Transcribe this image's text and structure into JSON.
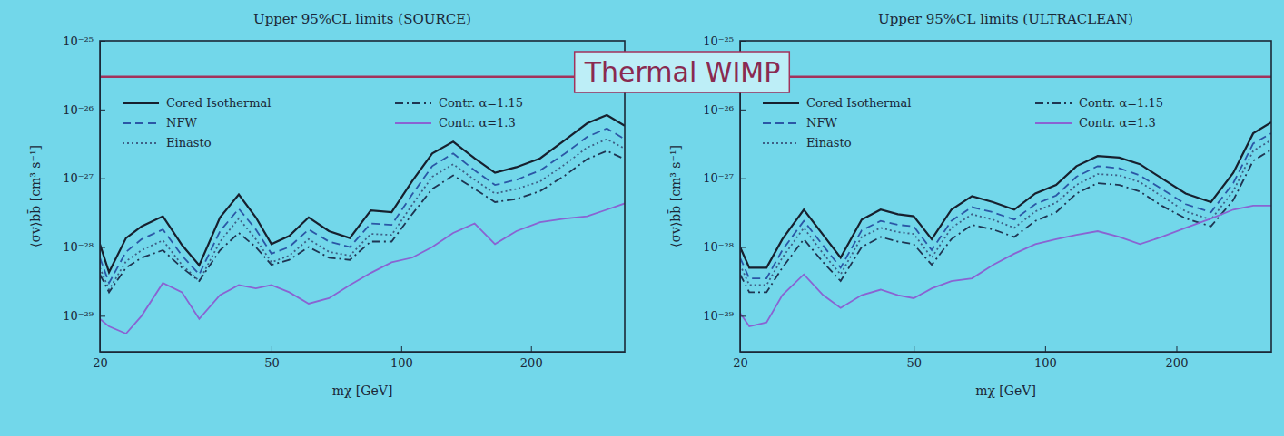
{
  "chart_data": [
    {
      "type": "line",
      "title": "Upper 95%CL limits (SOURCE)",
      "x_label": "mχ [GeV]",
      "y_label": "⟨σv⟩bb̄ [cm³ s⁻¹]",
      "log": true,
      "grid": false,
      "legend": "top",
      "xlim": [
        20,
        330
      ],
      "xticks": [
        20,
        50,
        100,
        200
      ],
      "ylim": [
        3e-30,
        1e-25
      ],
      "yticks": [
        {
          "value": 1e-25,
          "label": "10⁻²⁵"
        },
        {
          "value": 1e-26,
          "label": "10⁻²⁶"
        },
        {
          "value": 1e-27,
          "label": "10⁻²⁷"
        },
        {
          "value": 1e-28,
          "label": "10⁻²⁸"
        },
        {
          "value": 1e-29,
          "label": "10⁻²⁹"
        }
      ],
      "x": [
        20,
        21,
        23,
        25,
        28,
        31,
        34,
        38,
        42,
        46,
        50,
        55,
        61,
        68,
        76,
        85,
        95,
        106,
        118,
        132,
        148,
        165,
        185,
        210,
        240,
        270,
        300,
        330
      ],
      "series": [
        {
          "name": "Cored Isothermal",
          "color": "#17202e",
          "line_style": "solid",
          "values": [
            1.1e-28,
            4.3e-29,
            1.35e-28,
            2e-28,
            2.8e-28,
            1.07e-28,
            5.4e-29,
            2.7e-28,
            5.8e-28,
            2.7e-28,
            1.1e-28,
            1.45e-28,
            2.7e-28,
            1.7e-28,
            1.35e-28,
            3.4e-28,
            3.2e-28,
            9.1e-28,
            2.3e-27,
            3.4e-27,
            1.95e-27,
            1.2e-27,
            1.45e-27,
            1.95e-27,
            3.6e-27,
            6.3e-27,
            8.3e-27,
            5.8e-27
          ]
        },
        {
          "name": "NFW",
          "color": "#2b57a6",
          "line_style": "dashed",
          "values": [
            7e-29,
            3e-29,
            8.5e-29,
            1.3e-28,
            1.8e-28,
            7.5e-29,
            4e-29,
            1.7e-28,
            3.6e-28,
            1.8e-28,
            8e-29,
            1e-28,
            1.8e-28,
            1.2e-28,
            1e-28,
            2.2e-28,
            2.1e-28,
            5.8e-28,
            1.5e-27,
            2.3e-27,
            1.3e-27,
            8e-28,
            9.5e-28,
            1.3e-27,
            2.3e-27,
            4e-27,
            5.3e-27,
            3.7e-27
          ]
        },
        {
          "name": "Einasto",
          "color": "#3d5f86",
          "line_style": "dotted",
          "values": [
            5e-29,
            2.4e-29,
            6.2e-29,
            9e-29,
            1.25e-28,
            5.5e-29,
            3.2e-29,
            1.2e-28,
            2.6e-28,
            1.3e-28,
            6e-29,
            7.5e-29,
            1.3e-28,
            8.5e-29,
            7.5e-29,
            1.55e-28,
            1.5e-28,
            4.1e-28,
            1.05e-27,
            1.6e-27,
            9.5e-28,
            6e-28,
            7e-28,
            9e-28,
            1.6e-27,
            2.8e-27,
            3.7e-27,
            2.7e-27
          ]
        },
        {
          "name": "Contr. α=1.15",
          "color": "#1f3552",
          "line_style": "dashdot",
          "values": [
            4e-29,
            2.2e-29,
            5e-29,
            7e-29,
            9e-29,
            5e-29,
            3.2e-29,
            9e-29,
            1.6e-28,
            1e-28,
            5.5e-29,
            6.5e-29,
            1e-28,
            7e-29,
            6.5e-29,
            1.2e-28,
            1.2e-28,
            3e-28,
            7e-28,
            1.1e-27,
            7e-28,
            4.5e-28,
            5e-28,
            6.5e-28,
            1.1e-27,
            1.9e-27,
            2.5e-27,
            1.9e-27
          ]
        },
        {
          "name": "Contr. α=1.3",
          "color": "#8a63d2",
          "line_style": "solid",
          "values": [
            9e-30,
            7e-30,
            5.5e-30,
            1e-29,
            3e-29,
            2.2e-29,
            9e-30,
            2e-29,
            2.8e-29,
            2.5e-29,
            2.8e-29,
            2.2e-29,
            1.5e-29,
            1.8e-29,
            2.8e-29,
            4.2e-29,
            6e-29,
            7e-29,
            1e-28,
            1.6e-28,
            2.2e-28,
            1.1e-28,
            1.7e-28,
            2.3e-28,
            2.6e-28,
            2.8e-28,
            3.5e-28,
            4.3e-28
          ]
        }
      ]
    },
    {
      "type": "line",
      "title": "Upper 95%CL limits (ULTRACLEAN)",
      "x_label": "mχ [GeV]",
      "y_label": "⟨σv⟩bb̄ [cm³ s⁻¹]",
      "log": true,
      "grid": false,
      "legend": "top",
      "xlim": [
        20,
        330
      ],
      "xticks": [
        20,
        50,
        100,
        200
      ],
      "ylim": [
        3e-30,
        1e-25
      ],
      "yticks": [
        {
          "value": 1e-25,
          "label": "10⁻²⁵"
        },
        {
          "value": 1e-26,
          "label": "10⁻²⁶"
        },
        {
          "value": 1e-27,
          "label": "10⁻²⁷"
        },
        {
          "value": 1e-28,
          "label": "10⁻²⁸"
        },
        {
          "value": 1e-29,
          "label": "10⁻²⁹"
        }
      ],
      "x": [
        20,
        21,
        23,
        25,
        28,
        31,
        34,
        38,
        42,
        46,
        50,
        55,
        61,
        68,
        76,
        85,
        95,
        106,
        118,
        132,
        148,
        165,
        185,
        210,
        240,
        270,
        300,
        330
      ],
      "series": [
        {
          "name": "Cored Isothermal",
          "color": "#17202e",
          "line_style": "solid",
          "values": [
            1e-28,
            5e-29,
            5e-29,
            1.3e-28,
            3.5e-28,
            1.5e-28,
            7e-29,
            2.5e-28,
            3.5e-28,
            3e-28,
            2.8e-28,
            1.3e-28,
            3.5e-28,
            5.5e-28,
            4.5e-28,
            3.5e-28,
            6e-28,
            8e-28,
            1.5e-27,
            2.1e-27,
            2e-27,
            1.6e-27,
            1e-27,
            6e-28,
            4.5e-28,
            1.2e-27,
            4.5e-27,
            6.5e-27
          ]
        },
        {
          "name": "NFW",
          "color": "#2b57a6",
          "line_style": "dashed",
          "values": [
            7e-29,
            3.5e-29,
            3.5e-29,
            9e-29,
            2.4e-28,
            1.05e-28,
            5e-29,
            1.75e-28,
            2.4e-28,
            2.1e-28,
            2e-28,
            9e-29,
            2.4e-28,
            3.8e-28,
            3.2e-28,
            2.5e-28,
            4.2e-28,
            5.6e-28,
            1.05e-27,
            1.5e-27,
            1.4e-27,
            1.1e-27,
            7e-28,
            4.2e-28,
            3.2e-28,
            8.5e-28,
            3.2e-27,
            4.5e-27
          ]
        },
        {
          "name": "Einasto",
          "color": "#3d5f86",
          "line_style": "dotted",
          "values": [
            5.5e-29,
            2.8e-29,
            2.8e-29,
            7e-29,
            1.9e-28,
            8e-29,
            4e-29,
            1.4e-28,
            1.9e-28,
            1.65e-28,
            1.55e-28,
            7e-29,
            1.9e-28,
            3e-28,
            2.5e-28,
            1.9e-28,
            3.3e-28,
            4.4e-28,
            8e-28,
            1.15e-27,
            1.1e-27,
            8.8e-28,
            5.5e-28,
            3.3e-28,
            2.5e-28,
            6.5e-28,
            2.5e-27,
            3.6e-27
          ]
        },
        {
          "name": "Contr. α=1.15",
          "color": "#1f3552",
          "line_style": "dashdot",
          "values": [
            4e-29,
            2.2e-29,
            2.2e-29,
            5e-29,
            1.3e-28,
            6e-29,
            3.2e-29,
            1e-28,
            1.4e-28,
            1.2e-28,
            1.1e-28,
            5.5e-29,
            1.3e-28,
            2.1e-28,
            1.8e-28,
            1.4e-28,
            2.4e-28,
            3.2e-28,
            6e-28,
            8.5e-28,
            8e-28,
            6.4e-28,
            4e-28,
            2.6e-28,
            2e-28,
            4.8e-28,
            1.8e-27,
            2.6e-27
          ]
        },
        {
          "name": "Contr. α=1.3",
          "color": "#8a63d2",
          "line_style": "solid",
          "values": [
            1.1e-29,
            7e-30,
            8e-30,
            2e-29,
            4e-29,
            2e-29,
            1.3e-29,
            2e-29,
            2.4e-29,
            2e-29,
            1.8e-29,
            2.5e-29,
            3.2e-29,
            3.5e-29,
            5.5e-29,
            8e-29,
            1.1e-28,
            1.3e-28,
            1.5e-28,
            1.7e-28,
            1.4e-28,
            1.1e-28,
            1.4e-28,
            1.9e-28,
            2.6e-28,
            3.5e-28,
            4e-28,
            4e-28
          ]
        }
      ]
    }
  ],
  "annotation": {
    "text": "Thermal WIMP",
    "value": 3e-26
  }
}
